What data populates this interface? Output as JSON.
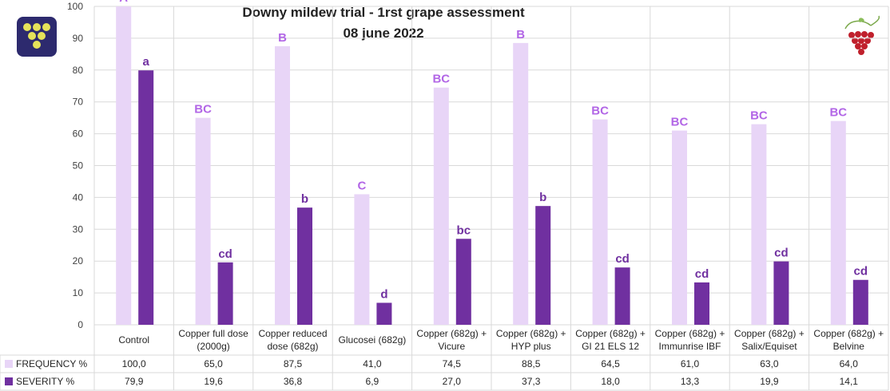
{
  "chart_data": {
    "type": "bar",
    "title": "Downy mildew trial - 1rst grape assessment",
    "subtitle": "08 june 2022",
    "ylim": [
      0,
      100
    ],
    "yticks": [
      0,
      10,
      20,
      30,
      40,
      50,
      60,
      70,
      80,
      90,
      100
    ],
    "grid": true,
    "categories": [
      [
        "Control"
      ],
      [
        "Copper full dose",
        "(2000g)"
      ],
      [
        "Copper reduced",
        "dose (682g)"
      ],
      [
        "Glucosei (682g)"
      ],
      [
        "Copper (682g) +",
        "Vicure"
      ],
      [
        "Copper (682g) +",
        "HYP plus"
      ],
      [
        "Copper (682g) +",
        "GI 21 ELS 12"
      ],
      [
        "Copper (682g) +",
        "Immunrise IBF"
      ],
      [
        "Copper (682g) +",
        "Salix/Equiset"
      ],
      [
        "Copper (682g) +",
        "Belvine"
      ]
    ],
    "series": [
      {
        "name": "FREQUENCY %",
        "color": "#e8d5f7",
        "label_color": "#b266e6",
        "values": [
          100.0,
          65.0,
          87.5,
          41.0,
          74.5,
          88.5,
          64.5,
          61.0,
          63.0,
          64.0
        ],
        "table_values": [
          "100,0",
          "65,0",
          "87,5",
          "41,0",
          "74,5",
          "88,5",
          "64,5",
          "61,0",
          "63,0",
          "64,0"
        ],
        "letters": [
          "A",
          "BC",
          "B",
          "C",
          "BC",
          "B",
          "BC",
          "BC",
          "BC",
          "BC"
        ]
      },
      {
        "name": "SEVERITY %",
        "color": "#7030a0",
        "label_color": "#7030a0",
        "values": [
          79.9,
          19.6,
          36.8,
          6.9,
          27.0,
          37.3,
          18.0,
          13.3,
          19.9,
          14.1
        ],
        "table_values": [
          "79,9",
          "19,6",
          "36,8",
          "6,9",
          "27,0",
          "37,3",
          "18,0",
          "13,3",
          "19,9",
          "14,1"
        ],
        "letters": [
          "a",
          "cd",
          "b",
          "d",
          "bc",
          "b",
          "cd",
          "cd",
          "cd",
          "cd"
        ]
      }
    ]
  }
}
